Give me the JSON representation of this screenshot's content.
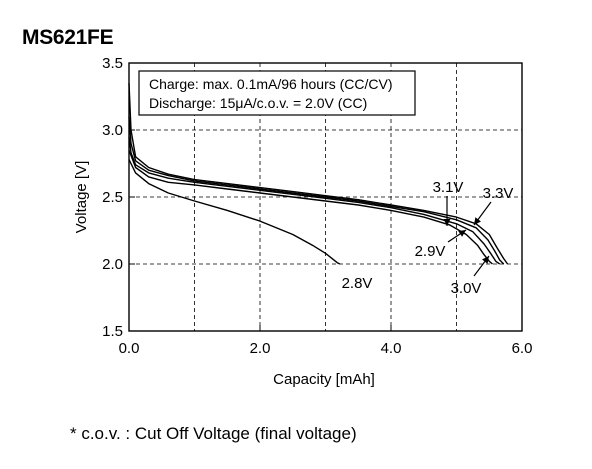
{
  "page": {
    "model": "MS621FE",
    "footnote": "* c.o.v. : Cut Off Voltage (final voltage)"
  },
  "chart_data": {
    "type": "line",
    "title": "MS621FE",
    "xlabel": "Capacity [mAh]",
    "ylabel": "Voltage [V]",
    "xlim": [
      0,
      6
    ],
    "ylim": [
      1.5,
      3.5
    ],
    "xticks": [
      0,
      2,
      4,
      6
    ],
    "xtick_labels": [
      "0.0",
      "2.0",
      "4.0",
      "6.0"
    ],
    "yticks": [
      1.5,
      2.0,
      2.5,
      3.0,
      3.5
    ],
    "ytick_labels": [
      "1.5",
      "2.0",
      "2.5",
      "3.0",
      "3.5"
    ],
    "grid": true,
    "annotation": [
      "Charge: max. 0.1mA/96 hours (CC/CV)",
      "Discharge: 15μA/c.o.v. = 2.0V (CC)"
    ],
    "series": [
      {
        "name": "3.3V",
        "x": [
          0,
          0.03,
          0.1,
          0.3,
          0.6,
          1.0,
          1.5,
          2.0,
          2.5,
          3.0,
          3.5,
          4.0,
          4.5,
          5.0,
          5.3,
          5.5,
          5.62,
          5.72,
          5.78
        ],
        "y": [
          3.35,
          3.0,
          2.8,
          2.72,
          2.67,
          2.63,
          2.6,
          2.57,
          2.54,
          2.51,
          2.48,
          2.44,
          2.4,
          2.35,
          2.3,
          2.22,
          2.12,
          2.04,
          2.0
        ]
      },
      {
        "name": "3.1V",
        "x": [
          0,
          0.03,
          0.1,
          0.3,
          0.6,
          1.0,
          1.5,
          2.0,
          2.5,
          3.0,
          3.5,
          4.0,
          4.5,
          5.0,
          5.3,
          5.48,
          5.58,
          5.66,
          5.72
        ],
        "y": [
          3.1,
          2.9,
          2.77,
          2.7,
          2.66,
          2.62,
          2.59,
          2.56,
          2.53,
          2.5,
          2.47,
          2.43,
          2.39,
          2.33,
          2.27,
          2.18,
          2.1,
          2.03,
          2.0
        ]
      },
      {
        "name": "3.0V",
        "x": [
          0,
          0.03,
          0.1,
          0.3,
          0.6,
          1.0,
          1.5,
          2.0,
          2.5,
          3.0,
          3.5,
          4.0,
          4.5,
          5.0,
          5.25,
          5.42,
          5.52,
          5.6,
          5.66
        ],
        "y": [
          2.95,
          2.83,
          2.74,
          2.68,
          2.64,
          2.61,
          2.58,
          2.55,
          2.52,
          2.49,
          2.46,
          2.42,
          2.37,
          2.3,
          2.24,
          2.15,
          2.08,
          2.02,
          2.0
        ]
      },
      {
        "name": "2.9V",
        "x": [
          0,
          0.1,
          0.3,
          0.6,
          1.0,
          1.5,
          2.0,
          2.5,
          3.0,
          3.5,
          4.0,
          4.5,
          4.9,
          5.15,
          5.32,
          5.42,
          5.5,
          5.55
        ],
        "y": [
          2.85,
          2.72,
          2.65,
          2.61,
          2.59,
          2.56,
          2.53,
          2.5,
          2.47,
          2.44,
          2.4,
          2.35,
          2.29,
          2.22,
          2.14,
          2.07,
          2.02,
          2.0
        ]
      },
      {
        "name": "2.8V",
        "x": [
          0,
          0.1,
          0.3,
          0.6,
          1.0,
          1.5,
          2.0,
          2.5,
          2.8,
          3.0,
          3.1,
          3.18,
          3.22
        ],
        "y": [
          2.78,
          2.68,
          2.6,
          2.53,
          2.47,
          2.4,
          2.32,
          2.22,
          2.14,
          2.08,
          2.04,
          2.01,
          2.0
        ]
      }
    ],
    "series_labels": [
      "3.1V",
      "3.3V",
      "2.9V",
      "3.0V",
      "2.8V"
    ]
  }
}
